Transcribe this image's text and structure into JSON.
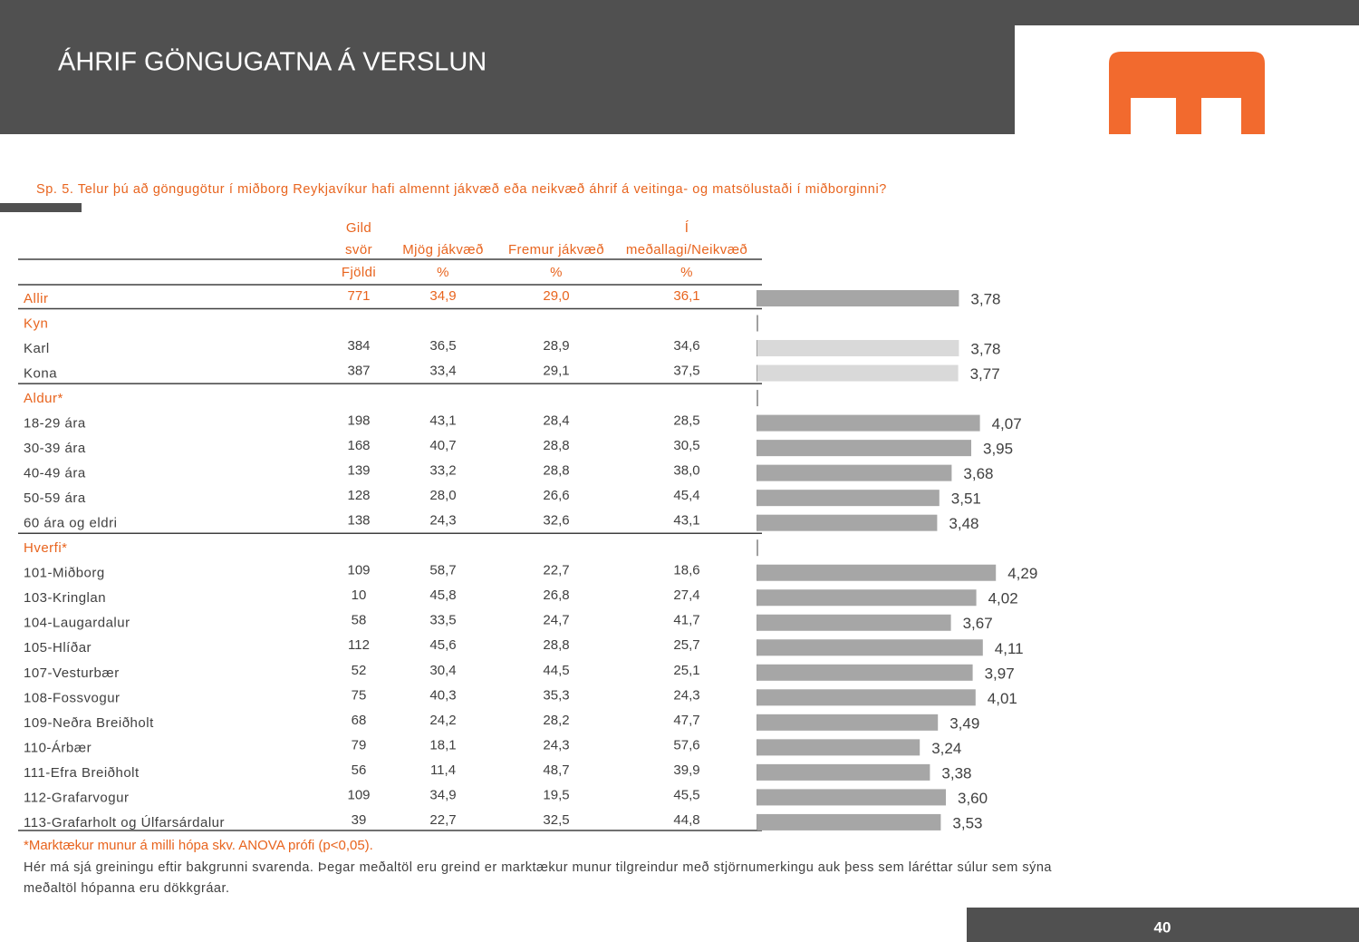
{
  "header": {
    "title": "ÁHRIF GÖNGUGATNA Á VERSLUN",
    "page_number": "40"
  },
  "question": "Sp. 5. Telur þú að göngugötur í miðborg Reykjavíkur hafi almennt jákvæð eða neikvæð áhrif á veitinga- og matsölustaði í miðborginni?",
  "accent_color": "#e8641e",
  "table": {
    "columns": [
      {
        "lines": [
          "Gild",
          "svör"
        ],
        "unit": "Fjöldi"
      },
      {
        "lines": [
          "Mjög jákvæð"
        ],
        "unit": "%"
      },
      {
        "lines": [
          "Fremur jákvæð"
        ],
        "unit": "%"
      },
      {
        "lines": [
          "Í",
          "meðallagi/Neikvæð"
        ],
        "unit": "%"
      }
    ],
    "xlim": [
      1,
      5
    ],
    "rows": [
      {
        "label": "Allir",
        "accent": true,
        "cells": [
          "771",
          "34,9",
          "29,0",
          "36,1"
        ],
        "mean": {
          "value": 3.78,
          "label": "3,78"
        },
        "bar_color": "#a6a6a6"
      },
      {
        "label": "Kyn",
        "accent": true,
        "group": true
      },
      {
        "label": "Karl",
        "cells": [
          "384",
          "36,5",
          "28,9",
          "34,6"
        ],
        "mean": {
          "value": 3.78,
          "label": "3,78"
        },
        "bar_color": "#d9d9d9"
      },
      {
        "label": "Kona",
        "cells": [
          "387",
          "33,4",
          "29,1",
          "37,5"
        ],
        "mean": {
          "value": 3.77,
          "label": "3,77"
        },
        "bar_color": "#d9d9d9"
      },
      {
        "label": "Aldur*",
        "accent": true,
        "group": true
      },
      {
        "label": "18-29 ára",
        "cells": [
          "198",
          "43,1",
          "28,4",
          "28,5"
        ],
        "mean": {
          "value": 4.07,
          "label": "4,07"
        },
        "bar_color": "#a6a6a6"
      },
      {
        "label": "30-39 ára",
        "cells": [
          "168",
          "40,7",
          "28,8",
          "30,5"
        ],
        "mean": {
          "value": 3.95,
          "label": "3,95"
        },
        "bar_color": "#a6a6a6"
      },
      {
        "label": "40-49 ára",
        "cells": [
          "139",
          "33,2",
          "28,8",
          "38,0"
        ],
        "mean": {
          "value": 3.68,
          "label": "3,68"
        },
        "bar_color": "#a6a6a6"
      },
      {
        "label": "50-59 ára",
        "cells": [
          "128",
          "28,0",
          "26,6",
          "45,4"
        ],
        "mean": {
          "value": 3.51,
          "label": "3,51"
        },
        "bar_color": "#a6a6a6"
      },
      {
        "label": "60 ára og eldri",
        "cells": [
          "138",
          "24,3",
          "32,6",
          "43,1"
        ],
        "mean": {
          "value": 3.48,
          "label": "3,48"
        },
        "bar_color": "#a6a6a6"
      },
      {
        "label": "Hverfi*",
        "accent": true,
        "group": true
      },
      {
        "label": "101-Miðborg",
        "cells": [
          "109",
          "58,7",
          "22,7",
          "18,6"
        ],
        "mean": {
          "value": 4.29,
          "label": "4,29"
        },
        "bar_color": "#a6a6a6"
      },
      {
        "label": "103-Kringlan",
        "cells": [
          "10",
          "45,8",
          "26,8",
          "27,4"
        ],
        "mean": {
          "value": 4.02,
          "label": "4,02"
        },
        "bar_color": "#a6a6a6"
      },
      {
        "label": "104-Laugardalur",
        "cells": [
          "58",
          "33,5",
          "24,7",
          "41,7"
        ],
        "mean": {
          "value": 3.67,
          "label": "3,67"
        },
        "bar_color": "#a6a6a6"
      },
      {
        "label": "105-Hlíðar",
        "cells": [
          "112",
          "45,6",
          "28,8",
          "25,7"
        ],
        "mean": {
          "value": 4.11,
          "label": "4,11"
        },
        "bar_color": "#a6a6a6"
      },
      {
        "label": "107-Vesturbær",
        "cells": [
          "52",
          "30,4",
          "44,5",
          "25,1"
        ],
        "mean": {
          "value": 3.97,
          "label": "3,97"
        },
        "bar_color": "#a6a6a6"
      },
      {
        "label": "108-Fossvogur",
        "cells": [
          "75",
          "40,3",
          "35,3",
          "24,3"
        ],
        "mean": {
          "value": 4.01,
          "label": "4,01"
        },
        "bar_color": "#a6a6a6"
      },
      {
        "label": "109-Neðra Breiðholt",
        "cells": [
          "68",
          "24,2",
          "28,2",
          "47,7"
        ],
        "mean": {
          "value": 3.49,
          "label": "3,49"
        },
        "bar_color": "#a6a6a6"
      },
      {
        "label": "110-Árbær",
        "cells": [
          "79",
          "18,1",
          "24,3",
          "57,6"
        ],
        "mean": {
          "value": 3.24,
          "label": "3,24"
        },
        "bar_color": "#a6a6a6"
      },
      {
        "label": "111-Efra Breiðholt",
        "cells": [
          "56",
          "11,4",
          "48,7",
          "39,9"
        ],
        "mean": {
          "value": 3.38,
          "label": "3,38"
        },
        "bar_color": "#a6a6a6"
      },
      {
        "label": "112-Grafarvogur",
        "cells": [
          "109",
          "34,9",
          "19,5",
          "45,5"
        ],
        "mean": {
          "value": 3.6,
          "label": "3,60"
        },
        "bar_color": "#a6a6a6"
      },
      {
        "label": "113-Grafarholt og Úlfarsárdalur",
        "cells": [
          "39",
          "22,7",
          "32,5",
          "44,8"
        ],
        "mean": {
          "value": 3.53,
          "label": "3,53"
        },
        "bar_color": "#a6a6a6"
      }
    ]
  },
  "footnote": "*Marktækur munur á milli hópa skv. ANOVA prófi (p<0,05).",
  "note_lines": [
    "Hér má sjá greiningu eftir bakgrunni svarenda. Þegar meðaltöl eru greind er marktækur munur tilgreindur með stjörnumerkingu auk þess sem láréttar súlur sem sýna",
    "meðaltöl hópanna eru dökkgráar."
  ]
}
